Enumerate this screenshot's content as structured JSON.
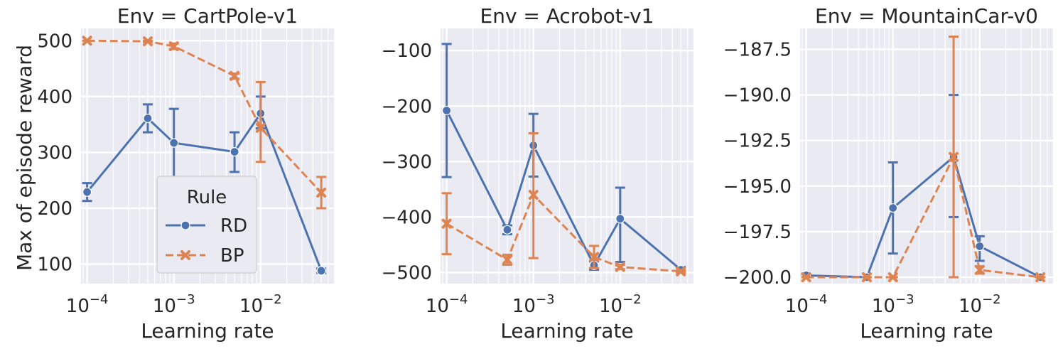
{
  "figure": {
    "ylabel": "Max of episode reward",
    "legend": {
      "title": "Rule",
      "entries": [
        "RD",
        "BP"
      ],
      "placement": "lower-right of first panel"
    }
  },
  "colors": {
    "RD": "#4c72b0",
    "BP": "#dd8452",
    "panel_bg": "#eaeaf2",
    "grid": "#ffffff",
    "text": "#262626"
  },
  "chart_data": [
    {
      "type": "line",
      "title": "Env = CartPole-v1",
      "xlabel": "Learning rate",
      "ylabel": "Max of episode reward",
      "xscale": "log",
      "xlim": [
        8.5e-05,
        0.07
      ],
      "ylim": [
        65,
        522
      ],
      "xticks": [
        0.0001,
        0.001,
        0.01
      ],
      "xtick_labels": [
        "10",
        "10",
        "10"
      ],
      "xtick_exps": [
        "−4",
        "−3",
        "−2"
      ],
      "yticks": [
        100,
        200,
        300,
        400,
        500
      ],
      "ytick_labels": [
        "100",
        "200",
        "300",
        "400",
        "500"
      ],
      "grid": true,
      "series": [
        {
          "name": "RD",
          "marker": "circle",
          "dash": "solid",
          "x": [
            0.0001,
            0.0005,
            0.001,
            0.005,
            0.01,
            0.05
          ],
          "y": [
            229,
            361,
            317,
            301,
            370,
            88
          ],
          "err_low": [
            213,
            336,
            256,
            265,
            343,
            84
          ],
          "err_high": [
            245,
            386,
            378,
            336,
            400,
            92
          ]
        },
        {
          "name": "BP",
          "marker": "x",
          "dash": "dashed",
          "x": [
            0.0001,
            0.0005,
            0.001,
            0.005,
            0.01,
            0.05
          ],
          "y": [
            500,
            499,
            490,
            437,
            344,
            228
          ],
          "err_low": [
            500,
            498,
            485,
            432,
            283,
            200
          ],
          "err_high": [
            500,
            500,
            495,
            441,
            426,
            256
          ]
        }
      ]
    },
    {
      "type": "line",
      "title": "Env = Acrobot-v1",
      "xlabel": "Learning rate",
      "xscale": "log",
      "xlim": [
        8.5e-05,
        0.07
      ],
      "ylim": [
        -520,
        -60
      ],
      "xticks": [
        0.0001,
        0.001,
        0.01
      ],
      "xtick_labels": [
        "10",
        "10",
        "10"
      ],
      "xtick_exps": [
        "−4",
        "−3",
        "−2"
      ],
      "yticks": [
        -500,
        -400,
        -300,
        -200,
        -100
      ],
      "ytick_labels": [
        "−500",
        "−400",
        "−300",
        "−200",
        "−100"
      ],
      "grid": true,
      "series": [
        {
          "name": "RD",
          "marker": "circle",
          "dash": "solid",
          "x": [
            0.0001,
            0.0005,
            0.001,
            0.005,
            0.01,
            0.05
          ],
          "y": [
            -208,
            -423,
            -271,
            -487,
            -403,
            -495
          ],
          "err_low": [
            -328,
            -431,
            -327,
            -495,
            -481,
            -500
          ],
          "err_high": [
            -88,
            -415,
            -214,
            -480,
            -347,
            -490
          ]
        },
        {
          "name": "BP",
          "marker": "x",
          "dash": "dashed",
          "x": [
            0.0001,
            0.0005,
            0.001,
            0.005,
            0.01,
            0.05
          ],
          "y": [
            -412,
            -477,
            -360,
            -472,
            -490,
            -498
          ],
          "err_low": [
            -467,
            -486,
            -474,
            -492,
            -494,
            -500
          ],
          "err_high": [
            -357,
            -468,
            -249,
            -452,
            -486,
            -496
          ]
        }
      ]
    },
    {
      "type": "line",
      "title": "Env = MountainCar-v0",
      "xlabel": "Learning rate",
      "xscale": "log",
      "xlim": [
        8.5e-05,
        0.07
      ],
      "ylim": [
        -200.35,
        -186.35
      ],
      "xticks": [
        0.0001,
        0.001,
        0.01
      ],
      "xtick_labels": [
        "10",
        "10",
        "10"
      ],
      "xtick_exps": [
        "−4",
        "−3",
        "−2"
      ],
      "yticks": [
        -200.0,
        -197.5,
        -195.0,
        -192.5,
        -190.0,
        -187.5
      ],
      "ytick_labels": [
        "−200.0",
        "−197.5",
        "−195.0",
        "−192.5",
        "−190.0",
        "−187.5"
      ],
      "grid": true,
      "series": [
        {
          "name": "RD",
          "marker": "circle",
          "dash": "solid",
          "x": [
            0.0001,
            0.0005,
            0.001,
            0.005,
            0.01,
            0.05
          ],
          "y": [
            -199.9,
            -200.0,
            -196.2,
            -193.4,
            -198.3,
            -200.0
          ],
          "err_low": [
            -199.95,
            -200.0,
            -198.7,
            -196.7,
            -199.1,
            -200.0
          ],
          "err_high": [
            -199.85,
            -200.0,
            -193.7,
            -190.0,
            -197.75,
            -200.0
          ]
        },
        {
          "name": "BP",
          "marker": "x",
          "dash": "dashed",
          "x": [
            0.0001,
            0.0005,
            0.001,
            0.005,
            0.01,
            0.05
          ],
          "y": [
            -200.0,
            -200.0,
            -200.0,
            -193.4,
            -199.6,
            -200.0
          ],
          "err_low": [
            -200.0,
            -200.0,
            -200.0,
            -200.0,
            -199.8,
            -200.0
          ],
          "err_high": [
            -200.0,
            -200.0,
            -200.0,
            -186.8,
            -199.4,
            -200.0
          ]
        }
      ]
    }
  ]
}
